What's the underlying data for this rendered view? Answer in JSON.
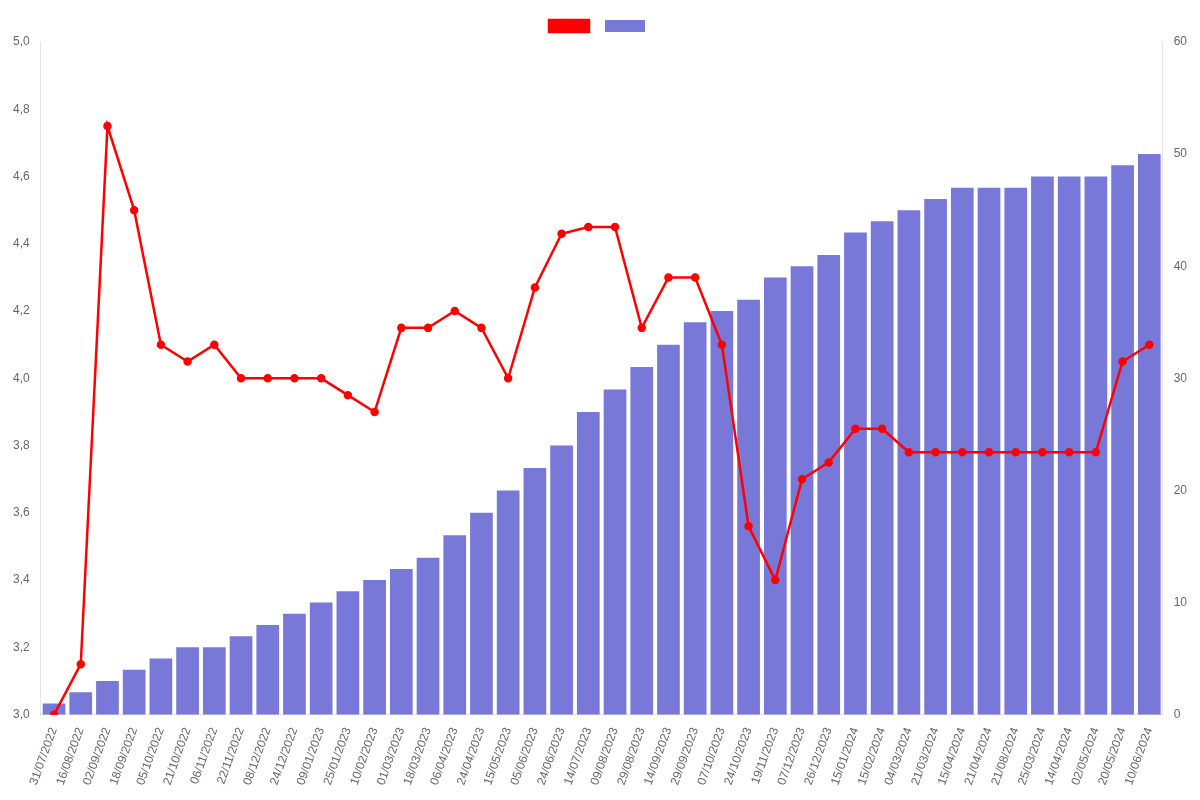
{
  "chart_data": {
    "type": "bar",
    "categories": [
      "31/07/2022",
      "16/08/2022",
      "02/09/2022",
      "18/09/2022",
      "05/10/2022",
      "21/10/2022",
      "06/11/2022",
      "22/11/2022",
      "08/12/2022",
      "24/12/2022",
      "09/01/2023",
      "25/01/2023",
      "10/02/2023",
      "01/03/2023",
      "18/03/2023",
      "06/04/2023",
      "24/04/2023",
      "15/05/2023",
      "05/06/2023",
      "24/06/2023",
      "14/07/2023",
      "09/08/2023",
      "29/08/2023",
      "14/09/2023",
      "29/09/2023",
      "07/10/2023",
      "24/10/2023",
      "19/11/2023",
      "07/12/2023",
      "26/12/2023",
      "15/01/2024",
      "15/02/2024",
      "04/03/2024",
      "21/03/2024",
      "15/04/2024",
      "21/04/2024",
      "21/08/2024",
      "25/03/2024",
      "14/04/2024",
      "02/05/2024",
      "20/05/2024",
      "10/06/2024"
    ],
    "series": [
      {
        "type": "line",
        "color": "#ff0000",
        "marker": "circle",
        "values": [
          3.0,
          3.15,
          4.75,
          4.5,
          4.1,
          4.05,
          4.1,
          4.0,
          4.0,
          4.0,
          4.0,
          3.95,
          3.9,
          4.15,
          4.15,
          4.2,
          4.15,
          4.0,
          4.27,
          4.43,
          4.45,
          4.45,
          4.15,
          4.3,
          4.3,
          4.1,
          3.56,
          3.4,
          3.7,
          3.75,
          3.85,
          3.85,
          3.78,
          3.78,
          3.78,
          3.78,
          3.78,
          3.78,
          3.78,
          3.78,
          4.05,
          4.1
        ]
      },
      {
        "type": "bar",
        "color": "#7878d8",
        "axis": "y2",
        "values": [
          1,
          2,
          3,
          4,
          5,
          6,
          6,
          7,
          8,
          9,
          10,
          11,
          12,
          13,
          14,
          16,
          18,
          20,
          22,
          24,
          27,
          29,
          31,
          33,
          35,
          36,
          37,
          39,
          40,
          41,
          43,
          44,
          45,
          46,
          47,
          47,
          47,
          48,
          48,
          48,
          49,
          50
        ]
      }
    ],
    "ylim": [
      3.0,
      5.0
    ],
    "yticks": [
      {
        "value": 3.0,
        "label": "3,0"
      },
      {
        "value": 3.2,
        "label": "3,2"
      },
      {
        "value": 3.4,
        "label": "3,4"
      },
      {
        "value": 3.6,
        "label": "3,6"
      },
      {
        "value": 3.8,
        "label": "3,8"
      },
      {
        "value": 4.0,
        "label": "4,0"
      },
      {
        "value": 4.2,
        "label": "4,2"
      },
      {
        "value": 4.4,
        "label": "4,4"
      },
      {
        "value": 4.6,
        "label": "4,6"
      },
      {
        "value": 4.8,
        "label": "4,8"
      },
      {
        "value": 5.0,
        "label": "5,0"
      }
    ],
    "y2lim": [
      0,
      60
    ],
    "y2ticks": [
      0,
      10,
      20,
      30,
      40,
      50,
      60
    ],
    "grid": false,
    "legend": "top"
  }
}
